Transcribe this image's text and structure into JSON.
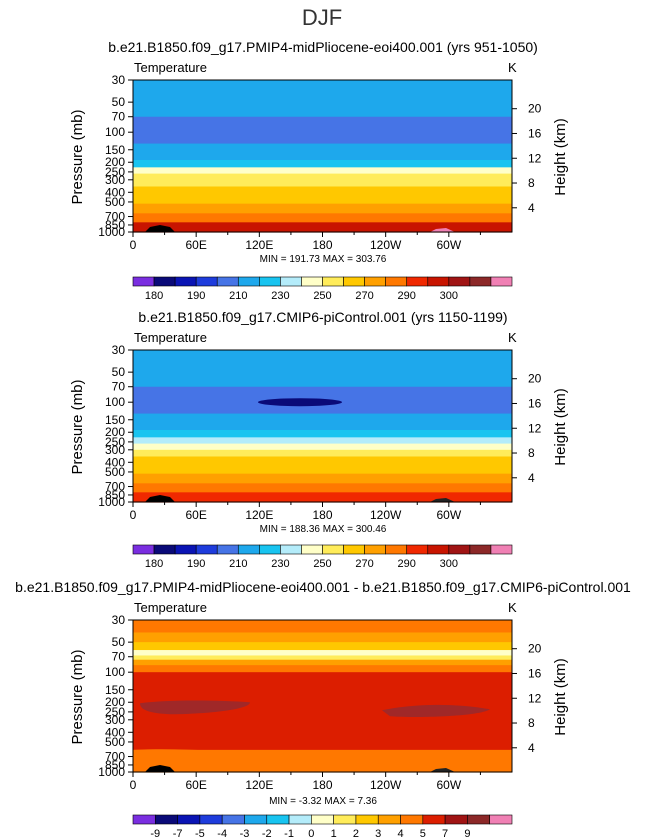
{
  "figure_title": "DJF",
  "colors": {
    "temperature": [
      "#7a2ee0",
      "#0a0a78",
      "#0a14b4",
      "#1e3cdc",
      "#4674e6",
      "#1ea8ec",
      "#18c4f0",
      "#b4ecfa",
      "#ffffc8",
      "#ffec5a",
      "#ffc800",
      "#ffa000",
      "#ff7800",
      "#f02800",
      "#c81400",
      "#a01414",
      "#8c2828",
      "#f080b4"
    ],
    "difference": [
      "#7a2ee0",
      "#0a0a78",
      "#0a14b4",
      "#1e3cdc",
      "#4674e6",
      "#1ea8ec",
      "#18c4f0",
      "#b4ecfa",
      "#ffffc8",
      "#ffec5a",
      "#ffc800",
      "#ffa000",
      "#ff7800",
      "#dc1e00",
      "#a01414",
      "#8c2828",
      "#f080b4"
    ]
  },
  "chart_data": [
    {
      "type": "heatmap",
      "panel": "top",
      "title": "b.e21.B1850.f09_g17.PMIP4-midPliocene-eoi400.001 (yrs 951-1050)",
      "field_label": "Temperature",
      "units": "K",
      "ylabel": "Pressure  (mb)",
      "y2label": "Height  (km)",
      "x_ticks": [
        "0",
        "60E",
        "120E",
        "180",
        "120W",
        "60W"
      ],
      "p_ticks": [
        "30",
        "50",
        "70",
        "100",
        "150",
        "200",
        "250",
        "300",
        "400",
        "500",
        "700",
        "850",
        "1000"
      ],
      "height_ticks": [
        "20",
        "16",
        "12",
        "8",
        "4"
      ],
      "stats": "MIN = 191.73   MAX = 303.76",
      "colorbar_labels": [
        "180",
        "190",
        "210",
        "230",
        "250",
        "270",
        "290",
        "300"
      ],
      "bands": [
        {
          "p_top": 30,
          "p_bot": 50,
          "value": 215
        },
        {
          "p_top": 50,
          "p_bot": 70,
          "value": 212
        },
        {
          "p_top": 70,
          "p_bot": 130,
          "value": 203
        },
        {
          "p_top": 130,
          "p_bot": 160,
          "value": 212
        },
        {
          "p_top": 160,
          "p_bot": 190,
          "value": 218
        },
        {
          "p_top": 190,
          "p_bot": 225,
          "value": 225
        },
        {
          "p_top": 225,
          "p_bot": 260,
          "value": 240
        },
        {
          "p_top": 260,
          "p_bot": 300,
          "value": 250
        },
        {
          "p_top": 300,
          "p_bot": 350,
          "value": 258
        },
        {
          "p_top": 350,
          "p_bot": 420,
          "value": 262
        },
        {
          "p_top": 420,
          "p_bot": 520,
          "value": 268
        },
        {
          "p_top": 520,
          "p_bot": 650,
          "value": 275
        },
        {
          "p_top": 650,
          "p_bot": 800,
          "value": 288
        },
        {
          "p_top": 800,
          "p_bot": 1000,
          "value": 296
        }
      ]
    },
    {
      "type": "heatmap",
      "panel": "middle",
      "title": "b.e21.B1850.f09_g17.CMIP6-piControl.001 (yrs 1150-1199)",
      "field_label": "Temperature",
      "units": "K",
      "ylabel": "Pressure  (mb)",
      "y2label": "Height  (km)",
      "x_ticks": [
        "0",
        "60E",
        "120E",
        "180",
        "120W",
        "60W"
      ],
      "p_ticks": [
        "30",
        "50",
        "70",
        "100",
        "150",
        "200",
        "250",
        "300",
        "400",
        "500",
        "700",
        "850",
        "1000"
      ],
      "height_ticks": [
        "20",
        "16",
        "12",
        "8",
        "4"
      ],
      "stats": "MIN = 188.36   MAX = 300.46",
      "colorbar_labels": [
        "180",
        "190",
        "210",
        "230",
        "250",
        "270",
        "290",
        "300"
      ],
      "bands": [
        {
          "p_top": 30,
          "p_bot": 50,
          "value": 214
        },
        {
          "p_top": 50,
          "p_bot": 70,
          "value": 211
        },
        {
          "p_top": 70,
          "p_bot": 130,
          "value": 201
        },
        {
          "p_top": 130,
          "p_bot": 160,
          "value": 210
        },
        {
          "p_top": 160,
          "p_bot": 190,
          "value": 216
        },
        {
          "p_top": 190,
          "p_bot": 225,
          "value": 222
        },
        {
          "p_top": 225,
          "p_bot": 260,
          "value": 236
        },
        {
          "p_top": 260,
          "p_bot": 300,
          "value": 246
        },
        {
          "p_top": 300,
          "p_bot": 350,
          "value": 254
        },
        {
          "p_top": 350,
          "p_bot": 420,
          "value": 260
        },
        {
          "p_top": 420,
          "p_bot": 520,
          "value": 265
        },
        {
          "p_top": 520,
          "p_bot": 650,
          "value": 272
        },
        {
          "p_top": 650,
          "p_bot": 800,
          "value": 283
        },
        {
          "p_top": 800,
          "p_bot": 1000,
          "value": 292
        }
      ]
    },
    {
      "type": "heatmap",
      "panel": "bottom",
      "title": "b.e21.B1850.f09_g17.PMIP4-midPliocene-eoi400.001 - b.e21.B1850.f09_g17.CMIP6-piControl.001",
      "field_label": "Temperature",
      "units": "K",
      "ylabel": "Pressure  (mb)",
      "y2label": "Height  (km)",
      "x_ticks": [
        "0",
        "60E",
        "120E",
        "180",
        "120W",
        "60W"
      ],
      "p_ticks": [
        "30",
        "50",
        "70",
        "100",
        "150",
        "200",
        "250",
        "300",
        "400",
        "500",
        "700",
        "850",
        "1000"
      ],
      "height_ticks": [
        "20",
        "16",
        "12",
        "8",
        "4"
      ],
      "stats": "MIN =   -3.32   MAX =    7.36",
      "colorbar_labels": [
        "-9",
        "-7",
        "-5",
        "-4",
        "-3",
        "-2",
        "-1",
        "0",
        "1",
        "2",
        "3",
        "4",
        "5",
        "7",
        "9"
      ],
      "bands": [
        {
          "p_top": 30,
          "p_bot": 40,
          "value": 4.5
        },
        {
          "p_top": 40,
          "p_bot": 50,
          "value": 3.5
        },
        {
          "p_top": 50,
          "p_bot": 60,
          "value": 2.5
        },
        {
          "p_top": 60,
          "p_bot": 68,
          "value": 0.5
        },
        {
          "p_top": 68,
          "p_bot": 75,
          "value": 1.5
        },
        {
          "p_top": 75,
          "p_bot": 85,
          "value": 3.5
        },
        {
          "p_top": 85,
          "p_bot": 100,
          "value": 4.5
        },
        {
          "p_top": 100,
          "p_bot": 600,
          "value": 5.5
        },
        {
          "p_top": 600,
          "p_bot": 1000,
          "value": 4.5
        }
      ]
    }
  ]
}
